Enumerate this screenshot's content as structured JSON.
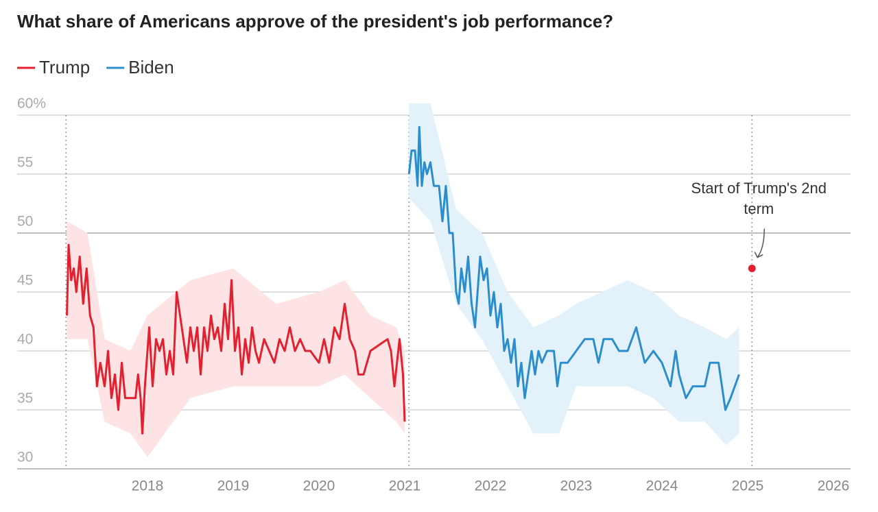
{
  "chart_data": {
    "type": "line",
    "title": "What share of Americans approve of the president's job performance?",
    "xlim": [
      2016.5,
      2026.2
    ],
    "xticks": [
      2018,
      2019,
      2020,
      2021,
      2022,
      2023,
      2024,
      2025,
      2026
    ],
    "ylim": [
      30,
      60
    ],
    "yticks": [
      30,
      35,
      40,
      45,
      50,
      {
        "value": 60,
        "label": "60%"
      },
      55
    ],
    "grid": true,
    "legend": "top-left",
    "reference_lines": [
      2017.05,
      2021.05,
      2025.05
    ],
    "annotation": {
      "text": "Start of Trump's 2nd term",
      "x": 2025.05,
      "y": 47,
      "color": "#e3202f"
    },
    "series": [
      {
        "name": "Trump",
        "color": "#e3202f",
        "band_color": "#fde3e3",
        "x": [
          2017.06,
          2017.08,
          2017.11,
          2017.14,
          2017.17,
          2017.21,
          2017.25,
          2017.29,
          2017.33,
          2017.37,
          2017.41,
          2017.45,
          2017.5,
          2017.54,
          2017.58,
          2017.62,
          2017.66,
          2017.7,
          2017.74,
          2017.86,
          2017.89,
          2017.92,
          2017.94,
          2017.97,
          2018.02,
          2018.06,
          2018.1,
          2018.14,
          2018.18,
          2018.22,
          2018.26,
          2018.3,
          2018.34,
          2018.38,
          2018.42,
          2018.46,
          2018.5,
          2018.54,
          2018.58,
          2018.62,
          2018.66,
          2018.7,
          2018.74,
          2018.78,
          2018.82,
          2018.86,
          2018.9,
          2018.94,
          2018.98,
          2019.02,
          2019.06,
          2019.1,
          2019.14,
          2019.18,
          2019.22,
          2019.26,
          2019.3,
          2019.36,
          2019.42,
          2019.48,
          2019.54,
          2019.6,
          2019.66,
          2019.72,
          2019.78,
          2019.84,
          2019.9,
          2020.0,
          2020.06,
          2020.12,
          2020.18,
          2020.24,
          2020.3,
          2020.36,
          2020.42,
          2020.46,
          2020.52,
          2020.6,
          2020.7,
          2020.8,
          2020.84,
          2020.88,
          2020.94,
          2020.98,
          2021.0
        ],
        "values": [
          43,
          49,
          46,
          47,
          45,
          48,
          44,
          47,
          43,
          42,
          37,
          39,
          37,
          40,
          36,
          38,
          35,
          39,
          36,
          36,
          38,
          36,
          33,
          37,
          42,
          37,
          41,
          40,
          41,
          38,
          40,
          38,
          45,
          43,
          41,
          39,
          42,
          40,
          42,
          38,
          42,
          40,
          43,
          41,
          42,
          40,
          44,
          41,
          46,
          40,
          42,
          38,
          41,
          39,
          42,
          40,
          39,
          41,
          40,
          39,
          41,
          40,
          42,
          40,
          41,
          40,
          40,
          39,
          41,
          39,
          42,
          41,
          44,
          41,
          40,
          38,
          38,
          40,
          40.5,
          41,
          40,
          37,
          41,
          38,
          34
        ],
        "band": {
          "x": [
            2017.06,
            2017.3,
            2017.5,
            2017.8,
            2018.0,
            2018.5,
            2019.0,
            2019.5,
            2020.0,
            2020.3,
            2020.6,
            2020.9,
            2021.0
          ],
          "lower": [
            41,
            41,
            34,
            33,
            31,
            36,
            37,
            37,
            37,
            38,
            36,
            34,
            33
          ],
          "upper": [
            51,
            50,
            41,
            40,
            43,
            46,
            47,
            44,
            45,
            46,
            43,
            42,
            40
          ]
        }
      },
      {
        "name": "Biden",
        "color": "#2b8dcc",
        "band_color": "#e3f1fa",
        "x": [
          2021.05,
          2021.08,
          2021.12,
          2021.15,
          2021.17,
          2021.2,
          2021.23,
          2021.26,
          2021.3,
          2021.34,
          2021.4,
          2021.44,
          2021.48,
          2021.52,
          2021.56,
          2021.6,
          2021.63,
          2021.66,
          2021.7,
          2021.74,
          2021.78,
          2021.82,
          2021.88,
          2021.92,
          2021.96,
          2022.0,
          2022.04,
          2022.08,
          2022.12,
          2022.16,
          2022.2,
          2022.24,
          2022.28,
          2022.32,
          2022.36,
          2022.4,
          2022.44,
          2022.48,
          2022.52,
          2022.56,
          2022.6,
          2022.66,
          2022.74,
          2022.78,
          2022.82,
          2022.9,
          2023.0,
          2023.1,
          2023.2,
          2023.26,
          2023.32,
          2023.42,
          2023.5,
          2023.6,
          2023.7,
          2023.8,
          2023.9,
          2024.0,
          2024.1,
          2024.16,
          2024.2,
          2024.28,
          2024.36,
          2024.5,
          2024.56,
          2024.66,
          2024.74,
          2024.8,
          2024.9
        ],
        "values": [
          55,
          57,
          57,
          54,
          59,
          54,
          56,
          55,
          56,
          54,
          54,
          51,
          54,
          50,
          50,
          45,
          44,
          47,
          45,
          48,
          44,
          42,
          48,
          46,
          47,
          43,
          45,
          42,
          44,
          40,
          41,
          39,
          41,
          37,
          39,
          36,
          38,
          40,
          38,
          40,
          39,
          40,
          40,
          37,
          39,
          39,
          40,
          41,
          41,
          39,
          41,
          41,
          40,
          40,
          42,
          39,
          40,
          39,
          37,
          40,
          38,
          36,
          37,
          37,
          39,
          39,
          35,
          36,
          38
        ],
        "band": {
          "x": [
            2021.05,
            2021.3,
            2021.6,
            2021.9,
            2022.2,
            2022.5,
            2022.8,
            2023.0,
            2023.3,
            2023.6,
            2023.9,
            2024.2,
            2024.5,
            2024.75,
            2024.9
          ],
          "lower": [
            53,
            51,
            44,
            41,
            37,
            33,
            33,
            37,
            37,
            37,
            36,
            34,
            34,
            32,
            33
          ],
          "upper": [
            61,
            61,
            52,
            50,
            45,
            42,
            43,
            44,
            45,
            46,
            45,
            43,
            42,
            41,
            42
          ]
        }
      }
    ]
  }
}
